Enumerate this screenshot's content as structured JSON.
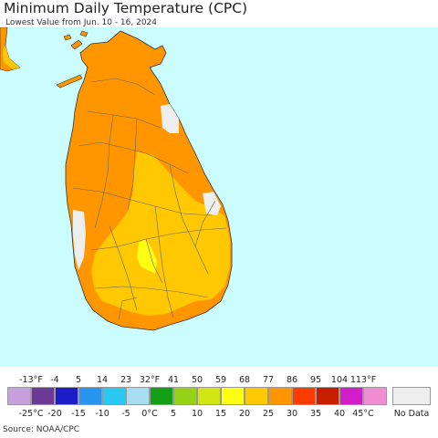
{
  "header": {
    "title": "Minimum Daily Temperature (CPC)",
    "subtitle": "Lowest Value from Jun. 10 - 16, 2024"
  },
  "legend": {
    "fahrenheit_labels": [
      "-13°F",
      "-4",
      "5",
      "14",
      "23",
      "32°F",
      "41",
      "50",
      "59",
      "68",
      "77",
      "86",
      "95",
      "104",
      "113°F"
    ],
    "celsius_labels": [
      "-25°C",
      "-20",
      "-15",
      "-10",
      "-5",
      "0°C",
      "5",
      "10",
      "15",
      "20",
      "25",
      "30",
      "35",
      "40",
      "45°C"
    ],
    "colors": [
      "#c8a0dc",
      "#6a3a96",
      "#1c1cc8",
      "#2896f0",
      "#28c8f0",
      "#a8dcf0",
      "#14a014",
      "#96d214",
      "#d2e614",
      "#ffff14",
      "#ffc800",
      "#ff9600",
      "#ff3c00",
      "#c81e00",
      "#d21ec8",
      "#f08cd2"
    ],
    "no_data_label": "No Data",
    "no_data_color": "#eeeeee"
  },
  "map": {
    "ocean_color": "#cbfcfe",
    "regions": [
      {
        "name": "north-and-coastal",
        "temperature_band_c": "25-30",
        "color": "#ff9600"
      },
      {
        "name": "central-highland-surroundings",
        "temperature_band_c": "20-25",
        "color": "#ffc800"
      },
      {
        "name": "central-highlands-peak",
        "temperature_band_c": "15-20",
        "color": "#ffff14"
      },
      {
        "name": "no-data-patches",
        "color": "#eeeeee"
      }
    ]
  },
  "footer": {
    "source": "Source: NOAA/CPC"
  }
}
